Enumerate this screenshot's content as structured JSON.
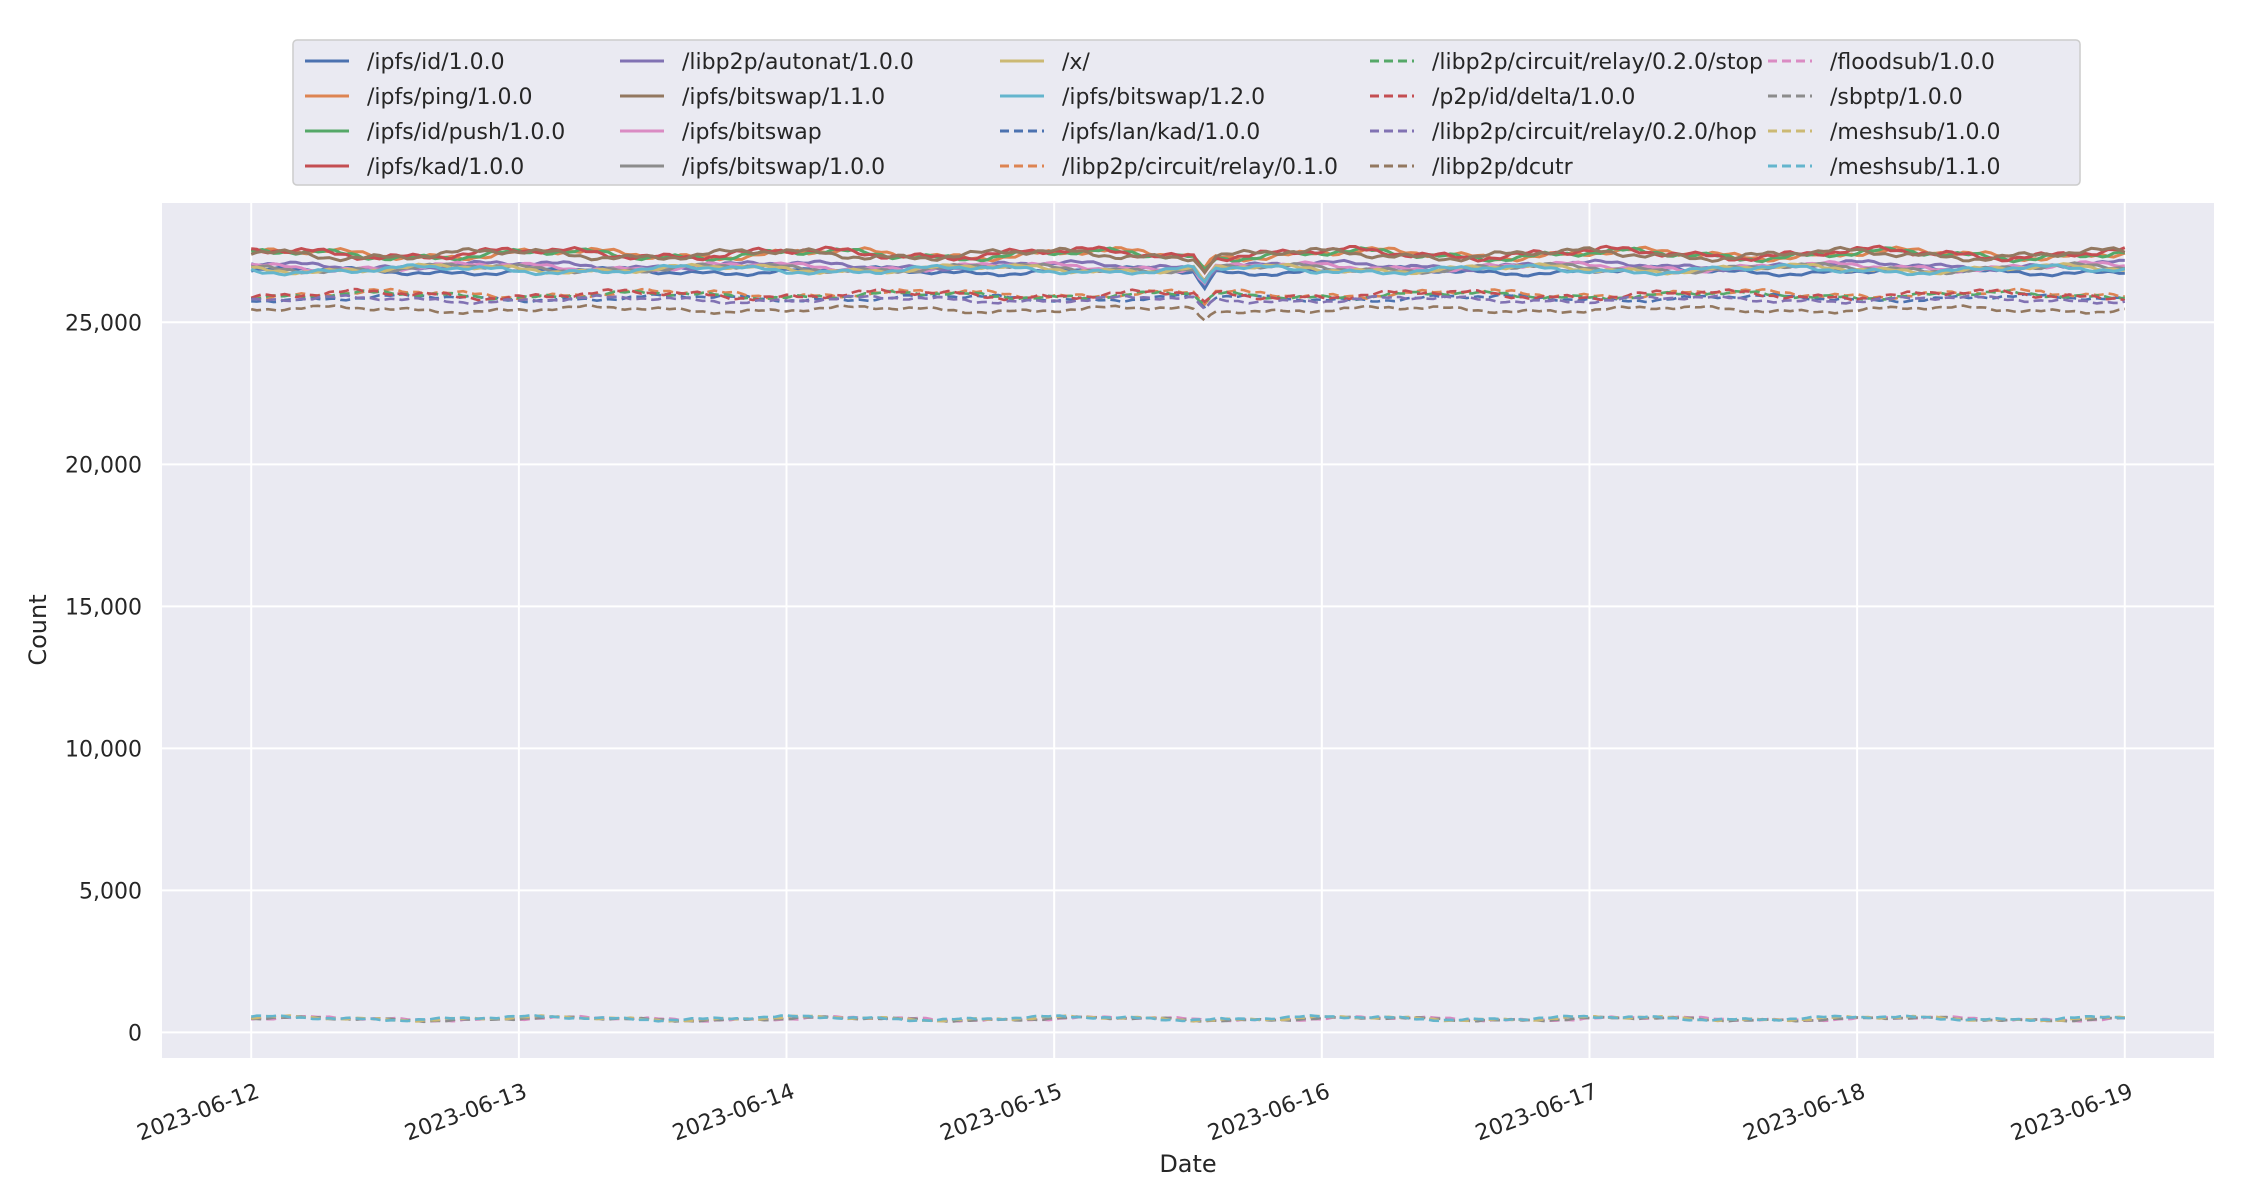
{
  "chart_data": {
    "type": "line",
    "xlabel": "Date",
    "ylabel": "Count",
    "x_start": "2023-06-12",
    "x_end": "2023-06-19",
    "xlim": [
      "2023-06-11T16:00",
      "2023-06-19T08:00"
    ],
    "ylim": [
      -900,
      29200
    ],
    "grid": true,
    "legend_placement": "upper center, above plot, 5 columns",
    "x_ticks": [
      "2023-06-12",
      "2023-06-13",
      "2023-06-14",
      "2023-06-15",
      "2023-06-16",
      "2023-06-17",
      "2023-06-18",
      "2023-06-19"
    ],
    "y_ticks": [
      0,
      5000,
      10000,
      15000,
      20000,
      25000
    ],
    "y_tick_labels": [
      "0",
      "5,000",
      "10,000",
      "15,000",
      "20,000",
      "25,000"
    ],
    "series": [
      {
        "name": "/ipfs/id/1.0.0",
        "color": "#4c72b0",
        "dash": false,
        "base": 26800,
        "amp": 90,
        "dip": 600
      },
      {
        "name": "/ipfs/ping/1.0.0",
        "color": "#dd8452",
        "dash": false,
        "base": 27400,
        "amp": 130,
        "dip": 500
      },
      {
        "name": "/ipfs/id/push/1.0.0",
        "color": "#55a868",
        "dash": false,
        "base": 27380,
        "amp": 130,
        "dip": 500
      },
      {
        "name": "/ipfs/kad/1.0.0",
        "color": "#c44e52",
        "dash": false,
        "base": 27420,
        "amp": 140,
        "dip": 500
      },
      {
        "name": "/libp2p/autonat/1.0.0",
        "color": "#8172b3",
        "dash": false,
        "base": 27000,
        "amp": 100,
        "dip": 550
      },
      {
        "name": "/ipfs/bitswap/1.1.0",
        "color": "#937860",
        "dash": false,
        "base": 27390,
        "amp": 130,
        "dip": 500
      },
      {
        "name": "/ipfs/bitswap",
        "color": "#da8bc3",
        "dash": false,
        "base": 26950,
        "amp": 100,
        "dip": 550
      },
      {
        "name": "/ipfs/bitswap/1.0.0",
        "color": "#8c8c8c",
        "dash": false,
        "base": 26900,
        "amp": 100,
        "dip": 550
      },
      {
        "name": "/x/",
        "color": "#ccb974",
        "dash": false,
        "base": 26880,
        "amp": 100,
        "dip": 550
      },
      {
        "name": "/ipfs/bitswap/1.2.0",
        "color": "#64b5cd",
        "dash": false,
        "base": 26850,
        "amp": 100,
        "dip": 550
      },
      {
        "name": "/ipfs/lan/kad/1.0.0",
        "color": "#4c72b0",
        "dash": true,
        "base": 25850,
        "amp": 80,
        "dip": 400
      },
      {
        "name": "/libp2p/circuit/relay/0.1.0",
        "color": "#dd8452",
        "dash": true,
        "base": 26000,
        "amp": 100,
        "dip": 400
      },
      {
        "name": "/libp2p/circuit/relay/0.2.0/stop",
        "color": "#55a868",
        "dash": true,
        "base": 25950,
        "amp": 90,
        "dip": 400
      },
      {
        "name": "/p2p/id/delta/1.0.0",
        "color": "#c44e52",
        "dash": true,
        "base": 25970,
        "amp": 110,
        "dip": 400
      },
      {
        "name": "/libp2p/circuit/relay/0.2.0/hop",
        "color": "#8172b3",
        "dash": true,
        "base": 25800,
        "amp": 80,
        "dip": 400
      },
      {
        "name": "/libp2p/dcutr",
        "color": "#937860",
        "dash": true,
        "base": 25450,
        "amp": 80,
        "dip": 450
      },
      {
        "name": "/floodsub/1.0.0",
        "color": "#da8bc3",
        "dash": true,
        "base": 480,
        "amp": 50,
        "dip": 0
      },
      {
        "name": "/sbptp/1.0.0",
        "color": "#8c8c8c",
        "dash": true,
        "base": 470,
        "amp": 50,
        "dip": 0
      },
      {
        "name": "/meshsub/1.0.0",
        "color": "#ccb974",
        "dash": true,
        "base": 490,
        "amp": 55,
        "dip": 0
      },
      {
        "name": "/meshsub/1.1.0",
        "color": "#64b5cd",
        "dash": true,
        "base": 500,
        "amp": 55,
        "dip": 0
      }
    ]
  }
}
